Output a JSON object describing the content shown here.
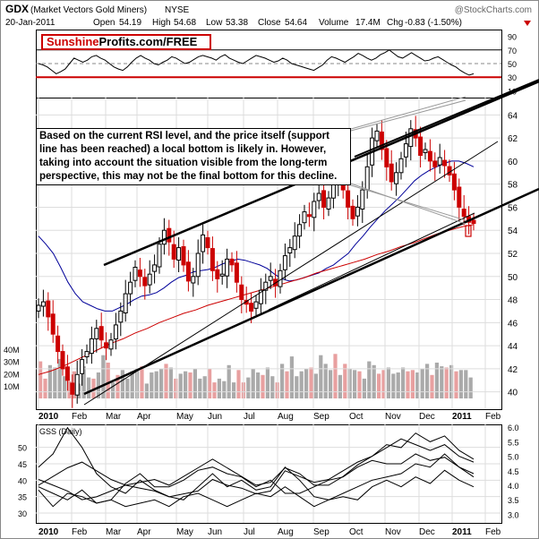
{
  "header": {
    "symbol": "GDX",
    "name": "(Market Vectors Gold Miners)",
    "exchange": "NYSE",
    "date": "20-Jan-2011",
    "open_label": "Open",
    "open": "54.19",
    "high_label": "High",
    "high": "54.68",
    "low_label": "Low",
    "low": "53.38",
    "close_label": "Close",
    "close": "54.64",
    "volume_label": "Volume",
    "volume": "17.4M",
    "chg_label": "Chg",
    "chg": "-0.83 (-1.50%)",
    "watermark": "@StockCharts.com"
  },
  "brand": {
    "part1": "Sunshine",
    "part2": "Profits.com/FREE"
  },
  "note": "Based on the current RSI level, and the price itself (support line has been reached) a local bottom is likely in. However, taking into account the situation visible from the long-term perspective, this may not be the final bottom for this decline.",
  "colors": {
    "up": "#000000",
    "down": "#cc0000",
    "ma50": "#000099",
    "ma200": "#cc0000",
    "volume": "#aaaaaa",
    "rsi_line": "#cc0000"
  },
  "chart_data": [
    {
      "type": "line",
      "panel": "RSI",
      "y_ticks": [
        "90",
        "70",
        "50",
        "30",
        "10"
      ],
      "ylim": [
        0,
        100
      ],
      "reference_levels": [
        70,
        50,
        30
      ],
      "highlight_level": 30,
      "values": [
        50,
        48,
        45,
        40,
        35,
        38,
        42,
        50,
        58,
        55,
        52,
        55,
        60,
        62,
        58,
        55,
        50,
        45,
        42,
        40,
        45,
        52,
        58,
        62,
        58,
        55,
        50,
        48,
        52,
        55,
        60,
        58,
        54,
        50,
        52,
        56,
        60,
        62,
        60,
        58,
        55,
        60,
        63,
        58,
        55,
        52,
        50,
        54,
        58,
        62,
        60,
        58,
        55,
        52,
        54,
        58,
        55,
        50,
        48,
        46,
        44,
        42,
        40,
        44,
        48,
        55,
        60,
        58,
        55,
        52,
        56,
        60,
        65,
        62,
        58,
        55,
        58,
        63,
        66,
        70,
        65,
        60,
        58,
        62,
        66,
        62,
        58,
        54,
        55,
        58,
        60,
        56,
        52,
        48,
        45,
        40,
        36,
        33,
        35
      ]
    },
    {
      "type": "candlestick",
      "panel": "price",
      "x_tick_labels": [
        "2010",
        "Feb",
        "Mar",
        "Apr",
        "May",
        "Jun",
        "Jul",
        "Aug",
        "Sep",
        "Oct",
        "Nov",
        "Dec",
        "2011",
        "Feb"
      ],
      "y_tick_labels": [
        "64",
        "62",
        "60",
        "58",
        "56",
        "54",
        "52",
        "50",
        "48",
        "46",
        "44",
        "42",
        "40"
      ],
      "ylim": [
        38.5,
        65.5
      ],
      "volume_tick_labels": [
        "40M",
        "30M",
        "20M",
        "10M"
      ],
      "volume_range": [
        0,
        58
      ],
      "closes": [
        47.5,
        47.8,
        46.5,
        45.0,
        43.5,
        42.0,
        41.0,
        39.8,
        41.5,
        42.8,
        43.5,
        44.6,
        45.5,
        44.5,
        43.8,
        44.5,
        45.8,
        47.0,
        48.5,
        49.5,
        50.8,
        50.0,
        49.2,
        50.2,
        51.0,
        52.8,
        54.0,
        53.0,
        51.5,
        52.5,
        51.0,
        49.6,
        50.0,
        52.0,
        53.6,
        52.5,
        50.5,
        49.8,
        50.2,
        51.5,
        51.0,
        49.5,
        48.0,
        47.6,
        47.0,
        47.8,
        48.8,
        49.5,
        50.0,
        49.2,
        50.5,
        51.8,
        52.5,
        53.5,
        54.5,
        55.6,
        55.2,
        56.5,
        57.2,
        56.0,
        56.8,
        58.0,
        58.6,
        57.5,
        56.0,
        55.0,
        56.0,
        57.5,
        59.5,
        62.0,
        62.6,
        61.0,
        59.5,
        58.2,
        59.0,
        60.2,
        61.5,
        62.8,
        62.0,
        60.5,
        61.0,
        60.0,
        59.5,
        60.3,
        59.6,
        58.8,
        57.5,
        56.0,
        55.2,
        54.7,
        54.6
      ],
      "ma50": [
        53.5,
        52.8,
        52.0,
        50.8,
        49.5,
        48.5,
        47.8,
        47.5,
        47.2,
        47.0,
        47.0,
        47.3,
        47.6,
        48.0,
        48.3,
        48.4,
        48.6,
        49.0,
        49.5,
        49.9,
        50.1,
        50.4,
        50.5,
        50.6,
        50.8,
        51.1,
        51.3,
        51.5,
        51.4,
        51.2,
        51.0,
        50.7,
        50.2,
        49.8,
        49.6,
        49.7,
        49.9,
        50.1,
        50.3,
        50.7,
        51.0,
        51.5,
        52.0,
        52.8,
        53.5,
        54.3,
        55.0,
        55.7,
        56.3,
        56.9,
        57.6,
        58.3,
        58.8,
        59.2,
        59.5,
        59.8,
        60.0,
        60.0,
        59.8,
        59.5
      ],
      "ma200": [
        41.5,
        41.8,
        42.2,
        42.7,
        43.2,
        43.7,
        44.2,
        44.6,
        45.1,
        45.5,
        46.0,
        46.4,
        46.8,
        47.1,
        47.5,
        47.8,
        48.1,
        48.4,
        48.7,
        49.0,
        49.3,
        49.6,
        49.9,
        50.3,
        50.6,
        50.9,
        51.2,
        51.5,
        51.9,
        52.2,
        52.6,
        52.9,
        53.3,
        53.7,
        54.0,
        54.3,
        54.5
      ],
      "volume": [
        30,
        16,
        27,
        25,
        32,
        18,
        14,
        22,
        12,
        26,
        17,
        16,
        21,
        35,
        29,
        13,
        19,
        23,
        16,
        22,
        24,
        26,
        12,
        21,
        22,
        24,
        28,
        25,
        16,
        20,
        22,
        21,
        24,
        16,
        18,
        24,
        13,
        16,
        14,
        27,
        13,
        23,
        13,
        17,
        24,
        21,
        19,
        25,
        18,
        13,
        28,
        22,
        34,
        18,
        22,
        24,
        25,
        20,
        35,
        28,
        23,
        36,
        19,
        28,
        24,
        23,
        22,
        16,
        30,
        27,
        20,
        23,
        25,
        20,
        21,
        25,
        22,
        23,
        21,
        24,
        28,
        19,
        29,
        26,
        25,
        27,
        22,
        23,
        23,
        17
      ]
    },
    {
      "type": "line",
      "panel": "GSS (Daily)",
      "title": "GSS (Daily)",
      "x_tick_labels": [
        "2010",
        "Feb",
        "Mar",
        "Apr",
        "May",
        "Jun",
        "Jul",
        "Aug",
        "Sep",
        "Oct",
        "Nov",
        "Dec",
        "2011",
        "Feb"
      ],
      "left_tick_labels": [
        "50",
        "45",
        "40",
        "35",
        "30"
      ],
      "right_tick_labels": [
        "6.0",
        "5.5",
        "5.0",
        "4.5",
        "4.0",
        "3.5",
        "3.0"
      ],
      "left_ylim": [
        27,
        57
      ],
      "right_ylim": [
        2.7,
        6.1
      ],
      "series": [
        {
          "axis": "left",
          "values": [
            44,
            48,
            56,
            50,
            42,
            38,
            36,
            40,
            37,
            35,
            34,
            38,
            42,
            38,
            40,
            37,
            38,
            44,
            40,
            35,
            34,
            36,
            38,
            40,
            41,
            42,
            45,
            44,
            48,
            44,
            42
          ]
        },
        {
          "axis": "left",
          "values": [
            38,
            36,
            34,
            37,
            33,
            34,
            39,
            42,
            38,
            38,
            40,
            43,
            44,
            42,
            41,
            38,
            40,
            36,
            36,
            38,
            40,
            41,
            44,
            46,
            45,
            45,
            48,
            46,
            47,
            44,
            41
          ]
        },
        {
          "axis": "left",
          "values": [
            37,
            32,
            36,
            35,
            33,
            34,
            32,
            33,
            34,
            32,
            35,
            36,
            34,
            32,
            34,
            36,
            35,
            38,
            35,
            32,
            34,
            35,
            34,
            38,
            40,
            38,
            41,
            39,
            43,
            40,
            38
          ]
        },
        {
          "axis": "right",
          "values": [
            4.2,
            4.0,
            3.8,
            3.5,
            3.6,
            3.8,
            4.0,
            3.9,
            3.8,
            3.6,
            3.7,
            3.8,
            4.2,
            4.0,
            3.9,
            3.7,
            3.8,
            4.5,
            4.3,
            4.1,
            4.2,
            4.5,
            4.8,
            5.0,
            5.3,
            5.6,
            5.4,
            5.2,
            5.4,
            5.0,
            4.8
          ]
        },
        {
          "axis": "right",
          "values": [
            4.0,
            4.3,
            4.6,
            4.8,
            4.5,
            4.2,
            4.0,
            4.1,
            4.2,
            4.0,
            4.3,
            4.6,
            4.9,
            4.6,
            4.3,
            4.0,
            4.1,
            4.6,
            4.4,
            4.0,
            4.0,
            4.3,
            4.7,
            5.0,
            5.4,
            5.3,
            5.8,
            5.5,
            5.7,
            5.2,
            4.9
          ]
        }
      ]
    }
  ]
}
